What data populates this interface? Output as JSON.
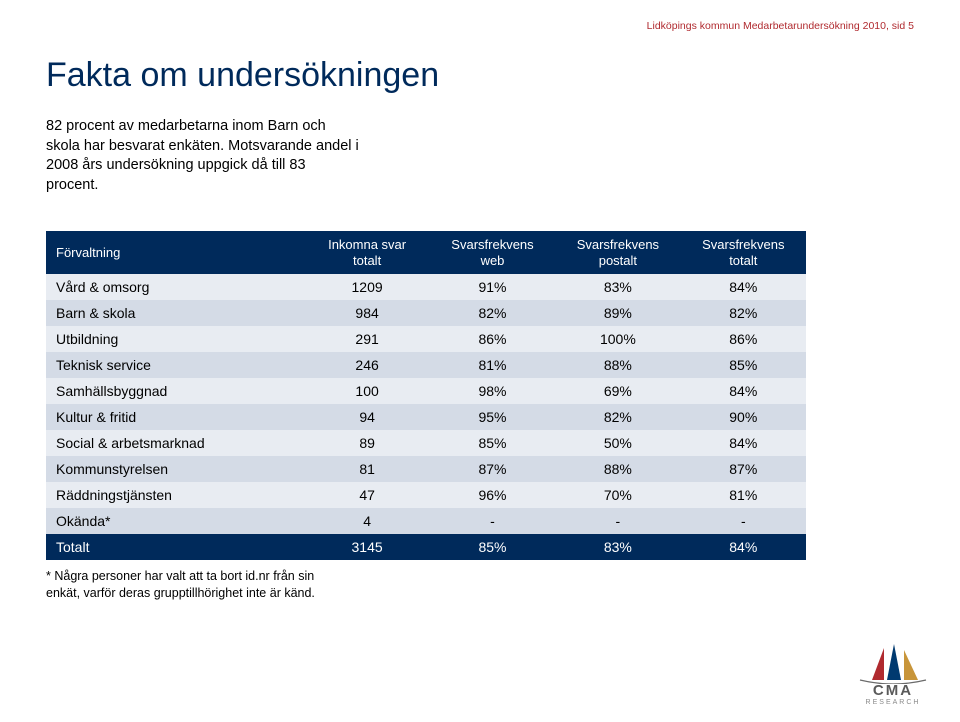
{
  "header_line": "Lidköpings kommun Medarbetarundersökning 2010,  sid 5",
  "title": "Fakta om undersökningen",
  "intro_lines": [
    "82 procent av medarbetarna inom Barn och",
    "skola har besvarat enkäten. Motsvarande andel i",
    "2008 års undersökning uppgick då till 83",
    "procent."
  ],
  "table": {
    "columns": [
      {
        "label": "Förvaltning",
        "lines": [
          "Förvaltning"
        ],
        "align": "left"
      },
      {
        "label": "Inkomna svar totalt",
        "lines": [
          "Inkomna svar",
          "totalt"
        ],
        "align": "center"
      },
      {
        "label": "Svarsfrekvens web",
        "lines": [
          "Svarsfrekvens",
          "web"
        ],
        "align": "center"
      },
      {
        "label": "Svarsfrekvens postalt",
        "lines": [
          "Svarsfrekvens",
          "postalt"
        ],
        "align": "center"
      },
      {
        "label": "Svarsfrekvens totalt",
        "lines": [
          "Svarsfrekvens",
          "totalt"
        ],
        "align": "center"
      }
    ],
    "rows": [
      {
        "cells": [
          "Vård & omsorg",
          "1209",
          "91%",
          "83%",
          "84%"
        ],
        "stripe": "odd"
      },
      {
        "cells": [
          "Barn & skola",
          "984",
          "82%",
          "89%",
          "82%"
        ],
        "stripe": "even"
      },
      {
        "cells": [
          "Utbildning",
          "291",
          "86%",
          "100%",
          "86%"
        ],
        "stripe": "odd"
      },
      {
        "cells": [
          "Teknisk service",
          "246",
          "81%",
          "88%",
          "85%"
        ],
        "stripe": "even"
      },
      {
        "cells": [
          "Samhällsbyggnad",
          "100",
          "98%",
          "69%",
          "84%"
        ],
        "stripe": "odd"
      },
      {
        "cells": [
          "Kultur & fritid",
          "94",
          "95%",
          "82%",
          "90%"
        ],
        "stripe": "even"
      },
      {
        "cells": [
          "Social & arbetsmarknad",
          "89",
          "85%",
          "50%",
          "84%"
        ],
        "stripe": "odd"
      },
      {
        "cells": [
          "Kommunstyrelsen",
          "81",
          "87%",
          "88%",
          "87%"
        ],
        "stripe": "even"
      },
      {
        "cells": [
          "Räddningstjänsten",
          "47",
          "96%",
          "70%",
          "81%"
        ],
        "stripe": "odd"
      },
      {
        "cells": [
          "Okända*",
          "4",
          "-",
          "-",
          "-"
        ],
        "stripe": "even"
      },
      {
        "cells": [
          "Totalt",
          "3145",
          "85%",
          "83%",
          "84%"
        ],
        "stripe": "total"
      }
    ],
    "header_bg": "#002a5b",
    "header_fg": "#ffffff",
    "odd_bg": "#e8ecf2",
    "even_bg": "#d4dbe6",
    "total_bg": "#002a5b",
    "total_fg": "#ffffff",
    "font_size": 14
  },
  "footnote_lines": [
    "* Några personer har valt att ta bort id.nr från sin",
    "enkät, varför deras grupptillhörighet inte är känd."
  ],
  "logo": {
    "text": "CMA",
    "sub": "RESEARCH",
    "sail_colors": [
      "#b02a2f",
      "#003a70",
      "#c8953a"
    ]
  },
  "colors": {
    "title": "#002a5b",
    "header": "#b02a2f",
    "text": "#000000",
    "page_bg": "#ffffff"
  }
}
